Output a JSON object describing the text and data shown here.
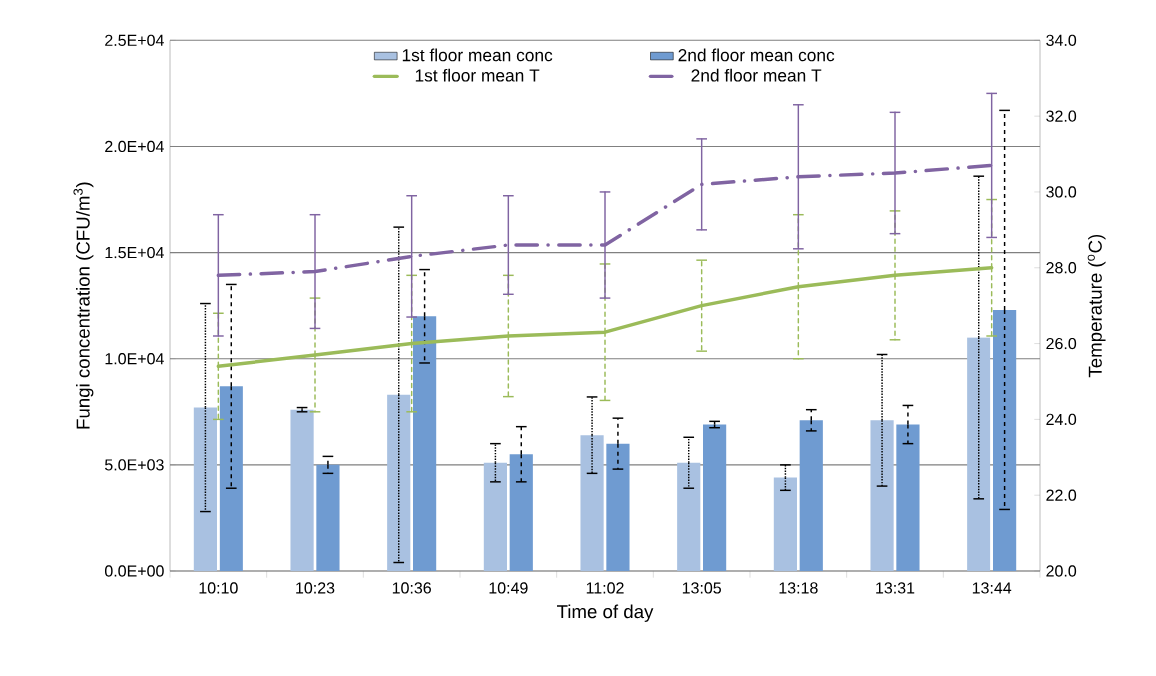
{
  "chart_data": {
    "type": "bar",
    "xlabel": "Time of day",
    "ylabel": "Fungi concentration (CFU/m$^{3}$)",
    "y2label": "Temperature ($^{o}$C)",
    "categories": [
      "10:10",
      "10:23",
      "10:36",
      "10:49",
      "11:02",
      "13:05",
      "13:18",
      "13:31",
      "13:44"
    ],
    "ylim": [
      0,
      25000
    ],
    "yticks": [
      {
        "value": 0,
        "label": "0.0E+00"
      },
      {
        "value": 5000,
        "label": "5.0E+03"
      },
      {
        "value": 10000,
        "label": "1.0E+04"
      },
      {
        "value": 15000,
        "label": "1.5E+04"
      },
      {
        "value": 20000,
        "label": "2.0E+04"
      },
      {
        "value": 25000,
        "label": "2.5E+04"
      }
    ],
    "y2lim": [
      20,
      34
    ],
    "y2ticks": [
      {
        "value": 20,
        "label": "20.0"
      },
      {
        "value": 22,
        "label": "22.0"
      },
      {
        "value": 24,
        "label": "24.0"
      },
      {
        "value": 26,
        "label": "26.0"
      },
      {
        "value": 28,
        "label": "28.0"
      },
      {
        "value": 30,
        "label": "30.0"
      },
      {
        "value": 32,
        "label": "32.0"
      },
      {
        "value": 34,
        "label": "34.0"
      }
    ],
    "grid": "y",
    "legend": "top",
    "series": [
      {
        "name": "1st floor mean conc",
        "color": "#a9c1e1",
        "values": [
          7700,
          7600,
          8300,
          5100,
          6400,
          5100,
          4400,
          7100,
          11000
        ],
        "errors": [
          4900,
          100,
          7900,
          900,
          1800,
          1200,
          600,
          3100,
          7600
        ]
      },
      {
        "name": "2nd floor mean conc",
        "color": "#6f9bd1",
        "values": [
          8700,
          5000,
          12000,
          5500,
          6000,
          6900,
          7100,
          6900,
          12300
        ],
        "errors": [
          4800,
          400,
          2200,
          1300,
          1200,
          150,
          500,
          900,
          9400
        ]
      },
      {
        "name": "1st floor mean T",
        "type": "line",
        "axis": "y2",
        "color": "#9bbb59",
        "line_style": "solid",
        "values": [
          25.4,
          25.7,
          26.0,
          26.2,
          26.3,
          27.0,
          27.5,
          27.8,
          28.0
        ],
        "errors": [
          1.4,
          1.5,
          1.8,
          1.6,
          1.8,
          1.2,
          1.9,
          1.7,
          1.8
        ]
      },
      {
        "name": "2nd floor mean T",
        "type": "line",
        "axis": "y2",
        "color": "#8064a2",
        "line_style": "dashdot",
        "values": [
          27.8,
          27.9,
          28.3,
          28.6,
          28.6,
          30.2,
          30.4,
          30.5,
          30.7
        ],
        "errors": [
          1.6,
          1.5,
          1.6,
          1.3,
          1.4,
          1.2,
          1.9,
          1.6,
          1.9
        ]
      }
    ]
  }
}
